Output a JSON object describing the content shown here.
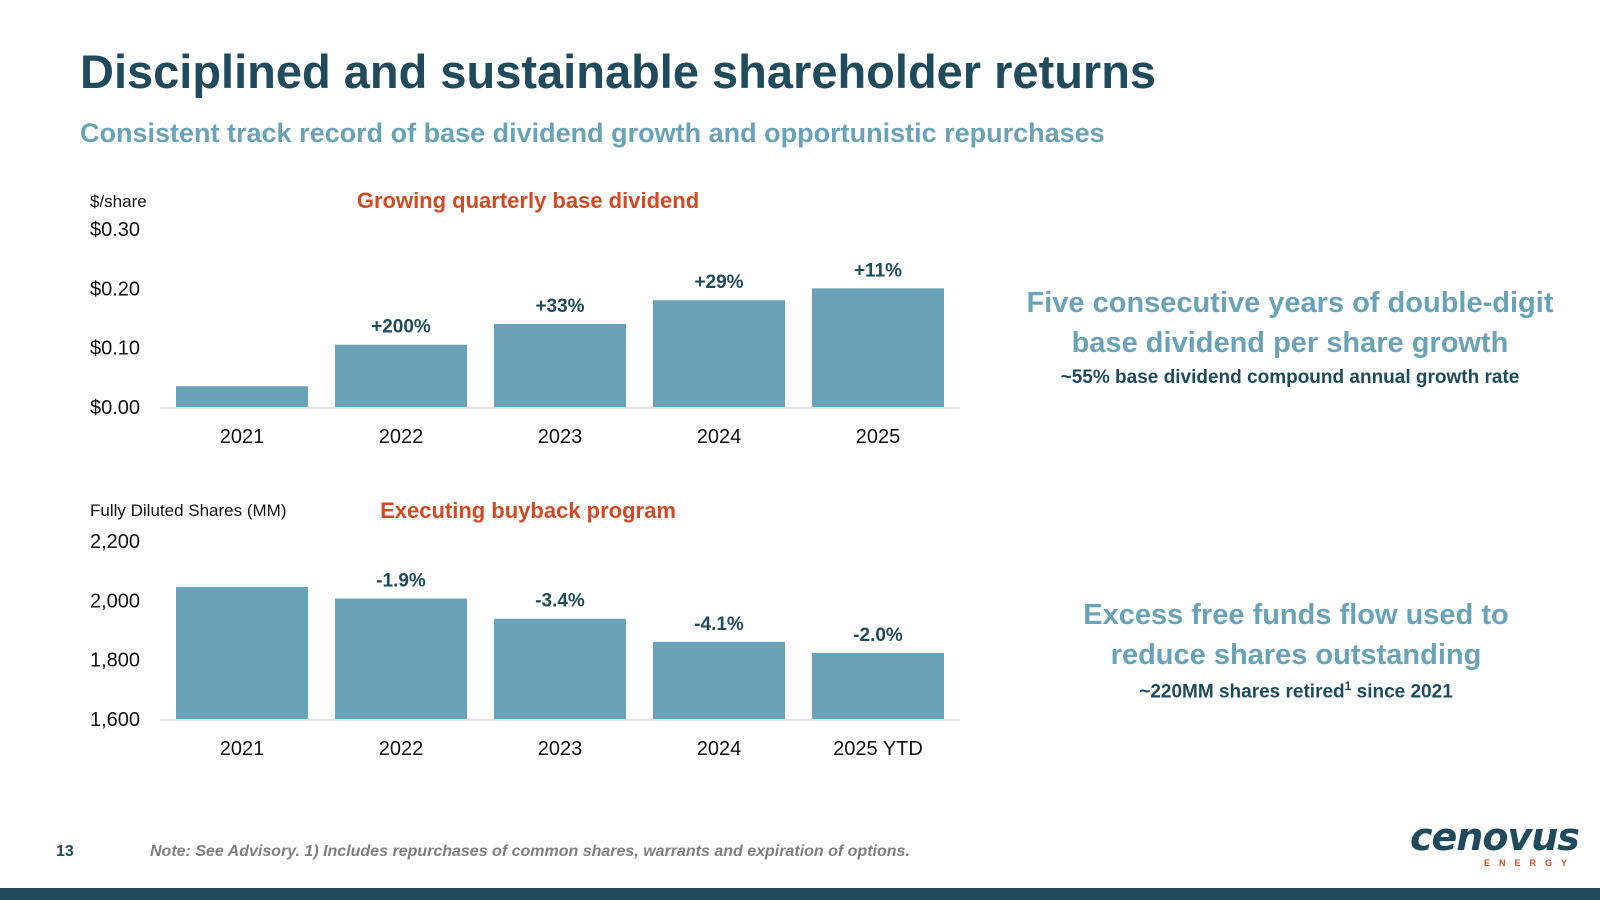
{
  "header": {
    "title": "Disciplined and sustainable shareholder returns",
    "subtitle": "Consistent track record of base dividend growth and opportunistic repurchases"
  },
  "chart_data": [
    {
      "type": "bar",
      "title": "Growing quarterly base dividend",
      "ylabel": "$/share",
      "categories": [
        "2021",
        "2022",
        "2023",
        "2024",
        "2025"
      ],
      "values": [
        0.035,
        0.105,
        0.14,
        0.18,
        0.2
      ],
      "data_labels": [
        "",
        "+200%",
        "+33%",
        "+29%",
        "+11%"
      ],
      "ylim": [
        0,
        0.3
      ],
      "yticks": [
        0.0,
        0.1,
        0.2,
        0.3
      ],
      "ytick_labels": [
        "$0.00",
        "$0.10",
        "$0.20",
        "$0.30"
      ],
      "grid": false
    },
    {
      "type": "bar",
      "title": "Executing buyback program",
      "ylabel": "Fully Diluted Shares (MM)",
      "categories": [
        "2021",
        "2022",
        "2023",
        "2024",
        "2025 YTD"
      ],
      "values": [
        2045,
        2006,
        1938,
        1860,
        1823
      ],
      "data_labels": [
        "",
        "-1.9%",
        "-3.4%",
        "-4.1%",
        "-2.0%"
      ],
      "ylim": [
        1600,
        2200
      ],
      "yticks": [
        1600,
        1800,
        2000,
        2200
      ],
      "ytick_labels": [
        "1,600",
        "1,800",
        "2,000",
        "2,200"
      ],
      "grid": false
    }
  ],
  "callouts": {
    "dividend": {
      "line1": "Five consecutive years of double-digit",
      "line2": "base dividend per share growth",
      "sub": "~55% base dividend compound annual growth rate"
    },
    "shares": {
      "line1": "Excess free funds flow used to",
      "line2": "reduce shares outstanding",
      "sub_pre": "~220MM shares retired",
      "sub_sup": "1",
      "sub_post": " since 2021"
    }
  },
  "footer": {
    "page_number": "13",
    "note": "Note: See Advisory. 1) Includes repurchases of common shares, warrants and expiration of options.",
    "logo_text": "cenovus",
    "logo_sub": "ENERGY"
  },
  "colors": {
    "primary": "#1f4b5c",
    "bar": "#6aa3b8",
    "accent": "#d04a24"
  }
}
